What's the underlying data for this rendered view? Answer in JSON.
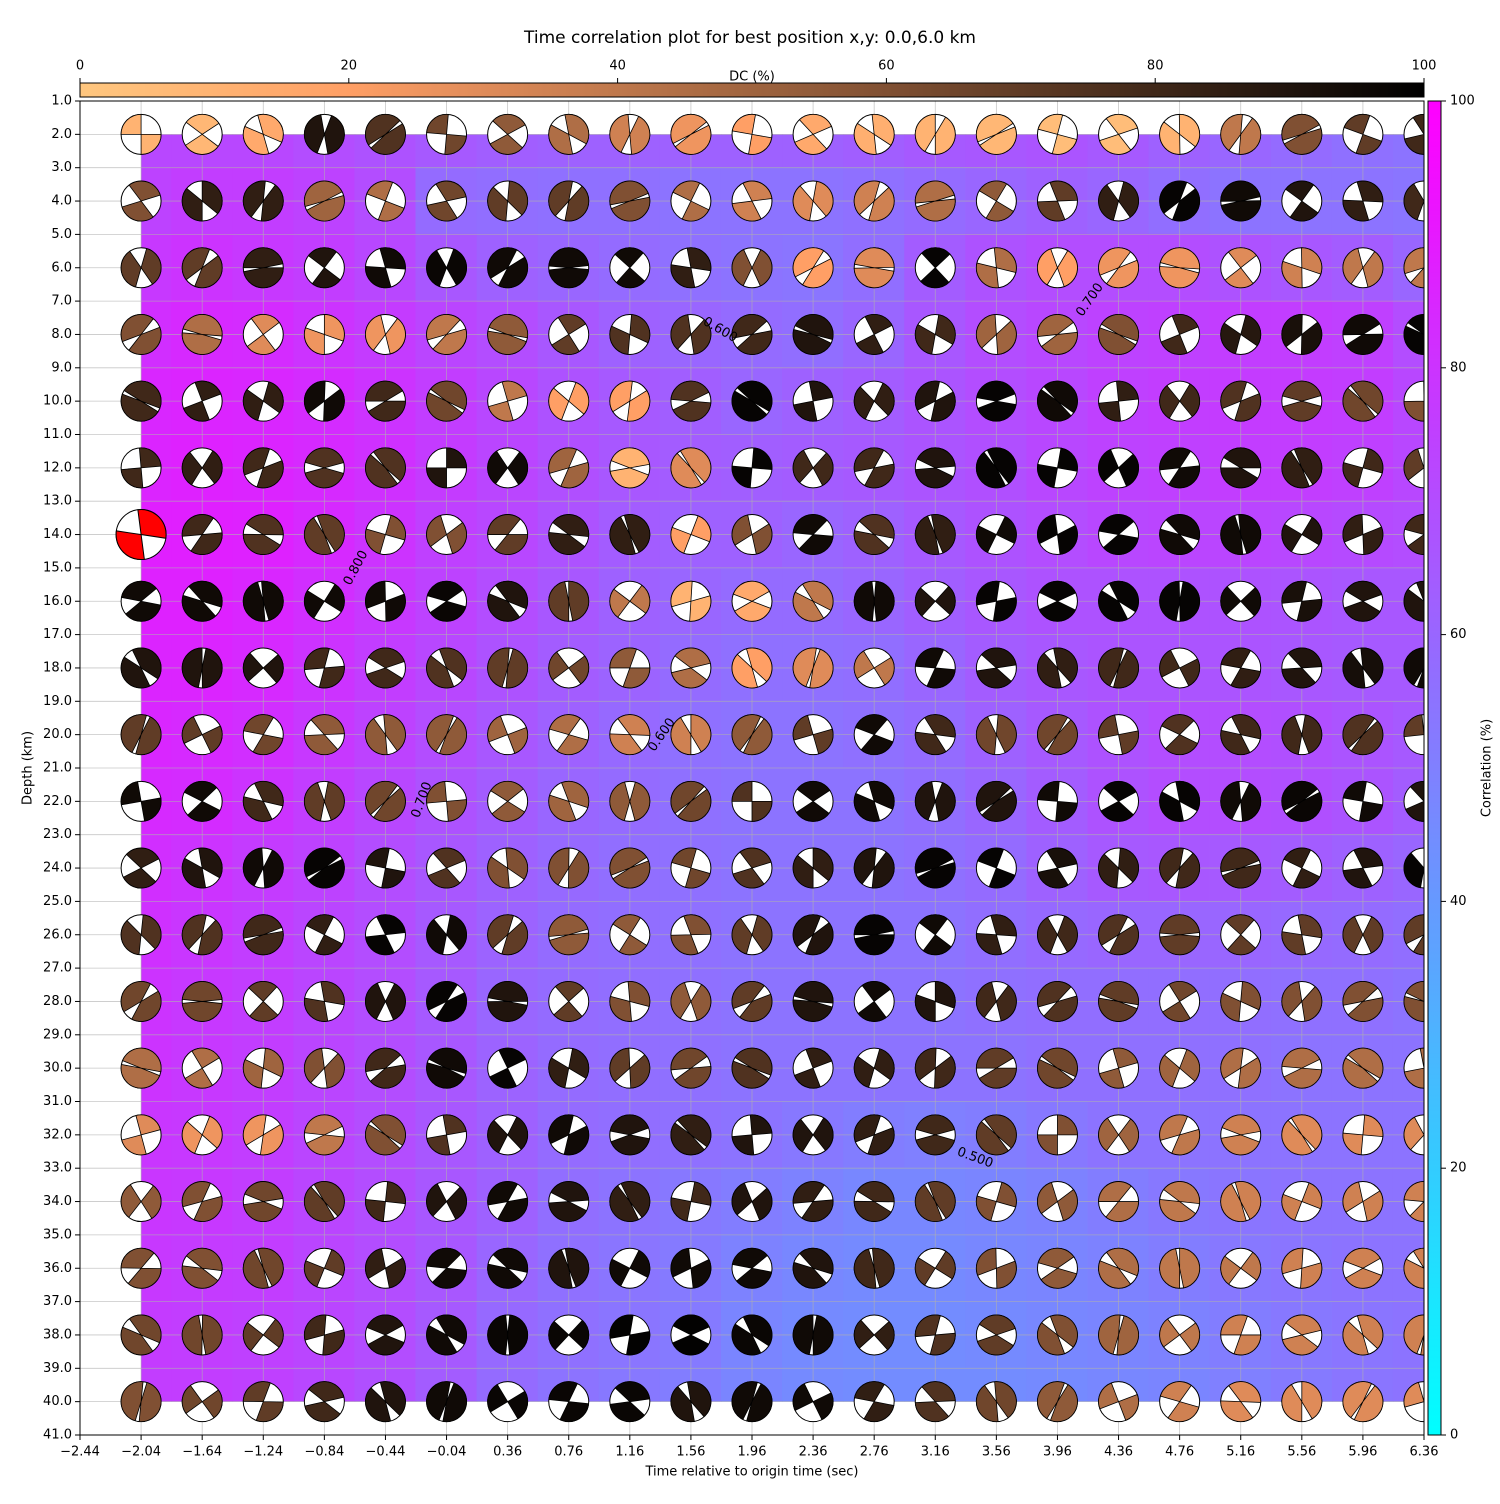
{
  "chart_data": {
    "type": "correlation-grid",
    "title": "Time correlation plot for best position x,y: 0.0,6.0 km",
    "xlabel": "Time relative to origin time (sec)",
    "ylabel": "Depth (km)",
    "dc_label": "DC (%)",
    "corr_label": "Correlation (%)",
    "xlim": [
      -2.44,
      6.36
    ],
    "ylim": [
      41.0,
      1.0
    ],
    "xticks": [
      {
        "value": -2.44,
        "label": "−2.44"
      },
      {
        "value": -2.04,
        "label": "−2.04"
      },
      {
        "value": -1.64,
        "label": "−1.64"
      },
      {
        "value": -1.24,
        "label": "−1.24"
      },
      {
        "value": -0.84,
        "label": "−0.84"
      },
      {
        "value": -0.44,
        "label": "−0.44"
      },
      {
        "value": -0.04,
        "label": "−0.04"
      },
      0.36,
      0.76,
      1.16,
      1.56,
      1.96,
      2.36,
      2.76,
      3.16,
      3.56,
      3.96,
      4.36,
      4.76,
      5.16,
      5.56,
      5.96,
      6.36
    ],
    "yticks": [
      {
        "value": 1,
        "label": "1.0"
      },
      {
        "value": 2,
        "label": "2.0"
      },
      {
        "value": 3,
        "label": "3.0"
      },
      {
        "value": 4,
        "label": "4.0"
      },
      {
        "value": 5,
        "label": "5.0"
      },
      {
        "value": 6,
        "label": "6.0"
      },
      {
        "value": 7,
        "label": "7.0"
      },
      {
        "value": 8,
        "label": "8.0"
      },
      {
        "value": 9,
        "label": "9.0"
      },
      {
        "value": 10,
        "label": "10.0"
      },
      {
        "value": 11,
        "label": "11.0"
      },
      {
        "value": 12,
        "label": "12.0"
      },
      {
        "value": 13,
        "label": "13.0"
      },
      {
        "value": 14,
        "label": "14.0"
      },
      {
        "value": 15,
        "label": "15.0"
      },
      {
        "value": 16,
        "label": "16.0"
      },
      {
        "value": 17,
        "label": "17.0"
      },
      {
        "value": 18,
        "label": "18.0"
      },
      {
        "value": 19,
        "label": "19.0"
      },
      {
        "value": 20,
        "label": "20.0"
      },
      {
        "value": 21,
        "label": "21.0"
      },
      {
        "value": 22,
        "label": "22.0"
      },
      {
        "value": 23,
        "label": "23.0"
      },
      {
        "value": 24,
        "label": "24.0"
      },
      {
        "value": 25,
        "label": "25.0"
      },
      {
        "value": 26,
        "label": "26.0"
      },
      {
        "value": 27,
        "label": "27.0"
      },
      {
        "value": 28,
        "label": "28.0"
      },
      {
        "value": 29,
        "label": "29.0"
      },
      {
        "value": 30,
        "label": "30.0"
      },
      {
        "value": 31,
        "label": "31.0"
      },
      {
        "value": 32,
        "label": "32.0"
      },
      {
        "value": 33,
        "label": "33.0"
      },
      {
        "value": 34,
        "label": "34.0"
      },
      {
        "value": 35,
        "label": "35.0"
      },
      {
        "value": 36,
        "label": "36.0"
      },
      {
        "value": 37,
        "label": "37.0"
      },
      {
        "value": 38,
        "label": "38.0"
      },
      {
        "value": 39,
        "label": "39.0"
      },
      {
        "value": 40,
        "label": "40.0"
      },
      {
        "value": 41,
        "label": "41.0"
      }
    ],
    "dc_lim": [
      0,
      100
    ],
    "dc_ticks": [
      0,
      20,
      40,
      60,
      80,
      100
    ],
    "corr_lim": [
      0,
      100
    ],
    "corr_ticks": [
      0,
      20,
      40,
      60,
      80,
      100
    ],
    "grid": true,
    "times": [
      -2.04,
      -1.64,
      -1.24,
      -0.84,
      -0.44,
      -0.04,
      0.36,
      0.76,
      1.16,
      1.56,
      1.96,
      2.36,
      2.76,
      3.16,
      3.56,
      3.96,
      4.36,
      4.76,
      5.16,
      5.56,
      5.96,
      6.36
    ],
    "depths": [
      2,
      4,
      6,
      8,
      10,
      12,
      14,
      16,
      18,
      20,
      22,
      24,
      26,
      28,
      30,
      32,
      34,
      36,
      38,
      40
    ],
    "best": {
      "time": -2.04,
      "depth": 14,
      "color": "red"
    },
    "correlation": [
      [
        72,
        72,
        72,
        70,
        68,
        65,
        63,
        62,
        62,
        62,
        62,
        62,
        63,
        65,
        66,
        67,
        65,
        62,
        60,
        58,
        56,
        55
      ],
      [
        74,
        76,
        76,
        74,
        70,
        58,
        57,
        56,
        56,
        55,
        55,
        55,
        56,
        58,
        60,
        62,
        60,
        57,
        55,
        55,
        55,
        54
      ],
      [
        78,
        80,
        78,
        76,
        72,
        66,
        62,
        60,
        58,
        56,
        55,
        54,
        57,
        64,
        68,
        70,
        70,
        70,
        68,
        66,
        64,
        60
      ],
      [
        82,
        84,
        83,
        80,
        77,
        73,
        70,
        66,
        62,
        60,
        58,
        57,
        60,
        66,
        70,
        72,
        74,
        75,
        76,
        76,
        75,
        70
      ],
      [
        85,
        86,
        85,
        83,
        80,
        76,
        72,
        68,
        65,
        63,
        60,
        62,
        64,
        67,
        70,
        72,
        75,
        76,
        77,
        77,
        76,
        72
      ],
      [
        86,
        87,
        86,
        84,
        81,
        77,
        73,
        69,
        66,
        64,
        63,
        64,
        65,
        67,
        69,
        72,
        74,
        75,
        76,
        76,
        75,
        72
      ],
      [
        88,
        88,
        87,
        84,
        80,
        75,
        72,
        68,
        64,
        62,
        62,
        60,
        62,
        65,
        68,
        70,
        72,
        73,
        73,
        72,
        71,
        70
      ],
      [
        87,
        87,
        85,
        82,
        78,
        74,
        70,
        66,
        62,
        60,
        58,
        58,
        60,
        63,
        66,
        68,
        68,
        68,
        68,
        67,
        66,
        66
      ],
      [
        86,
        86,
        84,
        80,
        76,
        72,
        68,
        64,
        61,
        58,
        56,
        56,
        57,
        60,
        64,
        66,
        67,
        67,
        67,
        66,
        65,
        65
      ],
      [
        85,
        84,
        82,
        78,
        74,
        70,
        66,
        62,
        59,
        56,
        55,
        55,
        56,
        58,
        62,
        65,
        68,
        70,
        70,
        69,
        67,
        65
      ],
      [
        84,
        83,
        80,
        76,
        72,
        68,
        64,
        60,
        58,
        56,
        55,
        55,
        55,
        57,
        60,
        64,
        68,
        70,
        70,
        69,
        67,
        64
      ],
      [
        82,
        80,
        77,
        74,
        70,
        66,
        62,
        59,
        57,
        56,
        55,
        55,
        55,
        56,
        58,
        62,
        65,
        66,
        65,
        64,
        62,
        60
      ],
      [
        81,
        79,
        76,
        73,
        70,
        65,
        61,
        58,
        57,
        56,
        55,
        55,
        55,
        55,
        57,
        59,
        60,
        60,
        60,
        59,
        58,
        57
      ],
      [
        80,
        78,
        76,
        73,
        70,
        65,
        60,
        58,
        57,
        56,
        55,
        55,
        55,
        55,
        56,
        57,
        57,
        57,
        57,
        56,
        56,
        55
      ],
      [
        80,
        78,
        76,
        73,
        70,
        66,
        61,
        58,
        57,
        56,
        55,
        55,
        55,
        55,
        55,
        56,
        56,
        56,
        56,
        55,
        55,
        55
      ],
      [
        79,
        78,
        76,
        73,
        70,
        66,
        62,
        58,
        57,
        56,
        55,
        53,
        51,
        50,
        51,
        53,
        55,
        55,
        55,
        55,
        55,
        55
      ],
      [
        79,
        78,
        76,
        73,
        70,
        66,
        62,
        57,
        55,
        53,
        51,
        49,
        47,
        47,
        48,
        49,
        51,
        53,
        54,
        55,
        55,
        55
      ],
      [
        78,
        77,
        76,
        73,
        70,
        66,
        60,
        56,
        54,
        52,
        49,
        47,
        46,
        46,
        47,
        48,
        49,
        51,
        53,
        54,
        55,
        55
      ],
      [
        77,
        76,
        75,
        73,
        70,
        65,
        59,
        56,
        54,
        52,
        48,
        46,
        45,
        45,
        46,
        47,
        48,
        49,
        51,
        53,
        54,
        55
      ],
      [
        76,
        76,
        75,
        72,
        69,
        64,
        58,
        55,
        53,
        51,
        48,
        46,
        45,
        45,
        45,
        46,
        47,
        48,
        50,
        52,
        54,
        55
      ]
    ],
    "dc": [
      [
        10,
        8,
        15,
        90,
        75,
        65,
        55,
        45,
        35,
        25,
        20,
        15,
        12,
        10,
        8,
        5,
        5,
        10,
        40,
        60,
        70,
        80
      ],
      [
        60,
        85,
        85,
        50,
        45,
        65,
        70,
        70,
        60,
        45,
        35,
        30,
        35,
        45,
        55,
        70,
        85,
        98,
        95,
        90,
        85,
        80
      ],
      [
        70,
        70,
        85,
        90,
        95,
        97,
        95,
        95,
        95,
        85,
        60,
        20,
        30,
        98,
        45,
        20,
        25,
        25,
        30,
        35,
        40,
        40
      ],
      [
        60,
        45,
        30,
        25,
        25,
        40,
        55,
        70,
        75,
        75,
        80,
        90,
        85,
        80,
        50,
        50,
        60,
        80,
        88,
        92,
        95,
        98
      ],
      [
        80,
        85,
        85,
        95,
        80,
        65,
        40,
        20,
        20,
        75,
        98,
        90,
        85,
        90,
        98,
        95,
        85,
        80,
        75,
        70,
        65,
        60
      ],
      [
        80,
        85,
        80,
        75,
        75,
        90,
        95,
        50,
        10,
        30,
        98,
        80,
        80,
        90,
        98,
        98,
        98,
        95,
        90,
        85,
        80,
        70
      ],
      [
        null,
        80,
        75,
        70,
        60,
        60,
        70,
        85,
        85,
        20,
        60,
        95,
        75,
        85,
        95,
        98,
        98,
        95,
        95,
        90,
        85,
        80
      ],
      [
        95,
        95,
        95,
        95,
        95,
        97,
        90,
        70,
        40,
        10,
        15,
        40,
        95,
        90,
        98,
        98,
        98,
        98,
        95,
        92,
        90,
        90
      ],
      [
        90,
        90,
        90,
        80,
        80,
        75,
        70,
        65,
        55,
        45,
        20,
        30,
        40,
        95,
        90,
        85,
        80,
        80,
        85,
        90,
        93,
        95
      ],
      [
        70,
        70,
        65,
        55,
        55,
        55,
        50,
        45,
        35,
        35,
        55,
        70,
        95,
        80,
        65,
        65,
        70,
        75,
        80,
        80,
        75,
        70
      ],
      [
        95,
        95,
        80,
        70,
        65,
        60,
        55,
        50,
        55,
        65,
        75,
        95,
        95,
        90,
        90,
        95,
        98,
        98,
        95,
        97,
        95,
        90
      ],
      [
        85,
        90,
        95,
        98,
        90,
        75,
        60,
        60,
        60,
        65,
        75,
        85,
        90,
        98,
        98,
        92,
        85,
        80,
        80,
        85,
        90,
        98
      ],
      [
        75,
        75,
        80,
        85,
        98,
        95,
        70,
        55,
        55,
        60,
        70,
        90,
        98,
        95,
        85,
        80,
        75,
        70,
        70,
        70,
        70,
        70
      ],
      [
        65,
        65,
        70,
        75,
        90,
        98,
        90,
        70,
        60,
        55,
        70,
        90,
        95,
        90,
        80,
        75,
        70,
        65,
        60,
        60,
        60,
        60
      ],
      [
        45,
        45,
        50,
        60,
        80,
        95,
        98,
        85,
        70,
        65,
        75,
        85,
        85,
        80,
        70,
        65,
        55,
        50,
        45,
        45,
        45,
        45
      ],
      [
        30,
        25,
        25,
        40,
        60,
        75,
        90,
        95,
        90,
        85,
        90,
        90,
        85,
        80,
        70,
        60,
        50,
        40,
        35,
        30,
        30,
        30
      ],
      [
        55,
        60,
        65,
        70,
        80,
        90,
        95,
        90,
        85,
        80,
        90,
        85,
        80,
        70,
        60,
        55,
        45,
        40,
        35,
        35,
        35,
        35
      ],
      [
        60,
        60,
        65,
        70,
        85,
        95,
        95,
        90,
        95,
        95,
        95,
        90,
        80,
        70,
        60,
        55,
        45,
        40,
        40,
        35,
        35,
        35
      ],
      [
        65,
        65,
        70,
        80,
        90,
        95,
        97,
        97,
        99,
        99,
        97,
        95,
        85,
        75,
        70,
        60,
        50,
        40,
        35,
        35,
        35,
        35
      ],
      [
        60,
        65,
        70,
        80,
        90,
        95,
        97,
        97,
        97,
        90,
        95,
        95,
        85,
        75,
        65,
        55,
        45,
        35,
        30,
        30,
        30,
        30
      ]
    ],
    "contour_labels": [
      "0.800",
      "0.700",
      "0.600",
      "0.500",
      "0.600",
      "0.700"
    ]
  }
}
